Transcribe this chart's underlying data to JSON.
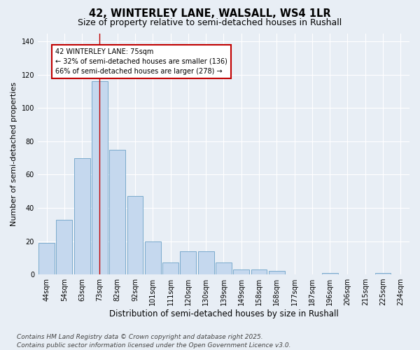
{
  "title_line1": "42, WINTERLEY LANE, WALSALL, WS4 1LR",
  "title_line2": "Size of property relative to semi-detached houses in Rushall",
  "xlabel": "Distribution of semi-detached houses by size in Rushall",
  "ylabel": "Number of semi-detached properties",
  "categories": [
    "44sqm",
    "54sqm",
    "63sqm",
    "73sqm",
    "82sqm",
    "92sqm",
    "101sqm",
    "111sqm",
    "120sqm",
    "130sqm",
    "139sqm",
    "149sqm",
    "158sqm",
    "168sqm",
    "177sqm",
    "187sqm",
    "196sqm",
    "206sqm",
    "215sqm",
    "225sqm",
    "234sqm"
  ],
  "values": [
    19,
    33,
    70,
    116,
    75,
    47,
    20,
    7,
    14,
    14,
    7,
    3,
    3,
    2,
    0,
    0,
    1,
    0,
    0,
    1,
    0
  ],
  "bar_color": "#c5d8ee",
  "bar_edge_color": "#7aaacc",
  "highlight_index": 3,
  "highlight_color": "#c00000",
  "ylim": [
    0,
    145
  ],
  "yticks": [
    0,
    20,
    40,
    60,
    80,
    100,
    120,
    140
  ],
  "annotation_title": "42 WINTERLEY LANE: 75sqm",
  "annotation_line1": "← 32% of semi-detached houses are smaller (136)",
  "annotation_line2": "66% of semi-detached houses are larger (278) →",
  "footnote_line1": "Contains HM Land Registry data © Crown copyright and database right 2025.",
  "footnote_line2": "Contains public sector information licensed under the Open Government Licence v3.0.",
  "bg_color": "#e8eef5",
  "plot_bg_color": "#e8eef5",
  "grid_color": "#ffffff",
  "title_fontsize": 10.5,
  "subtitle_fontsize": 9,
  "xlabel_fontsize": 8.5,
  "ylabel_fontsize": 8,
  "tick_fontsize": 7,
  "annotation_fontsize": 7,
  "footnote_fontsize": 6.5
}
